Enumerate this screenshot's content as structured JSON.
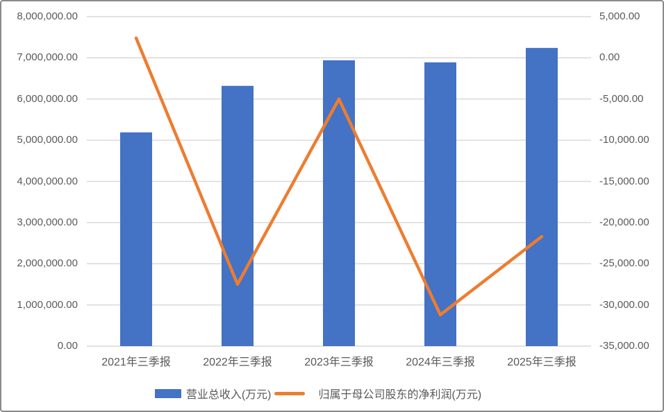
{
  "chart_data": {
    "type": "bar",
    "subtype": "combo-bar-line-dual-axis",
    "title": "",
    "categories": [
      "2021年三季报",
      "2022年三季报",
      "2023年三季报",
      "2024年三季报",
      "2025年三季报"
    ],
    "series": [
      {
        "name": "营业总收入(万元)",
        "chart": "bar",
        "axis": "left",
        "color": "#4472C4",
        "values": [
          5190000,
          6320000,
          6940000,
          6890000,
          7240000
        ]
      },
      {
        "name": "归属于母公司股东的净利润(万元)",
        "chart": "line",
        "axis": "right",
        "color": "#ED7D31",
        "values": [
          2400,
          -27500,
          -5000,
          -31200,
          -21700
        ]
      }
    ],
    "left_axis": {
      "min": 0,
      "max": 8000000,
      "step": 1000000,
      "tick_labels": [
        "8,000,000.00",
        "7,000,000.00",
        "6,000,000.00",
        "5,000,000.00",
        "4,000,000.00",
        "3,000,000.00",
        "2,000,000.00",
        "1,000,000.00",
        "0.00"
      ]
    },
    "right_axis": {
      "min": -35000,
      "max": 5000,
      "step": 5000,
      "tick_labels": [
        "5,000.00",
        "0.00",
        "-5,000.00",
        "-10,000.00",
        "-15,000.00",
        "-20,000.00",
        "-25,000.00",
        "-30,000.00",
        "-35,000.00"
      ]
    },
    "grid": true,
    "gridline_color": "#D9D9D9",
    "text_color": "#595959",
    "legend_position": "bottom"
  }
}
